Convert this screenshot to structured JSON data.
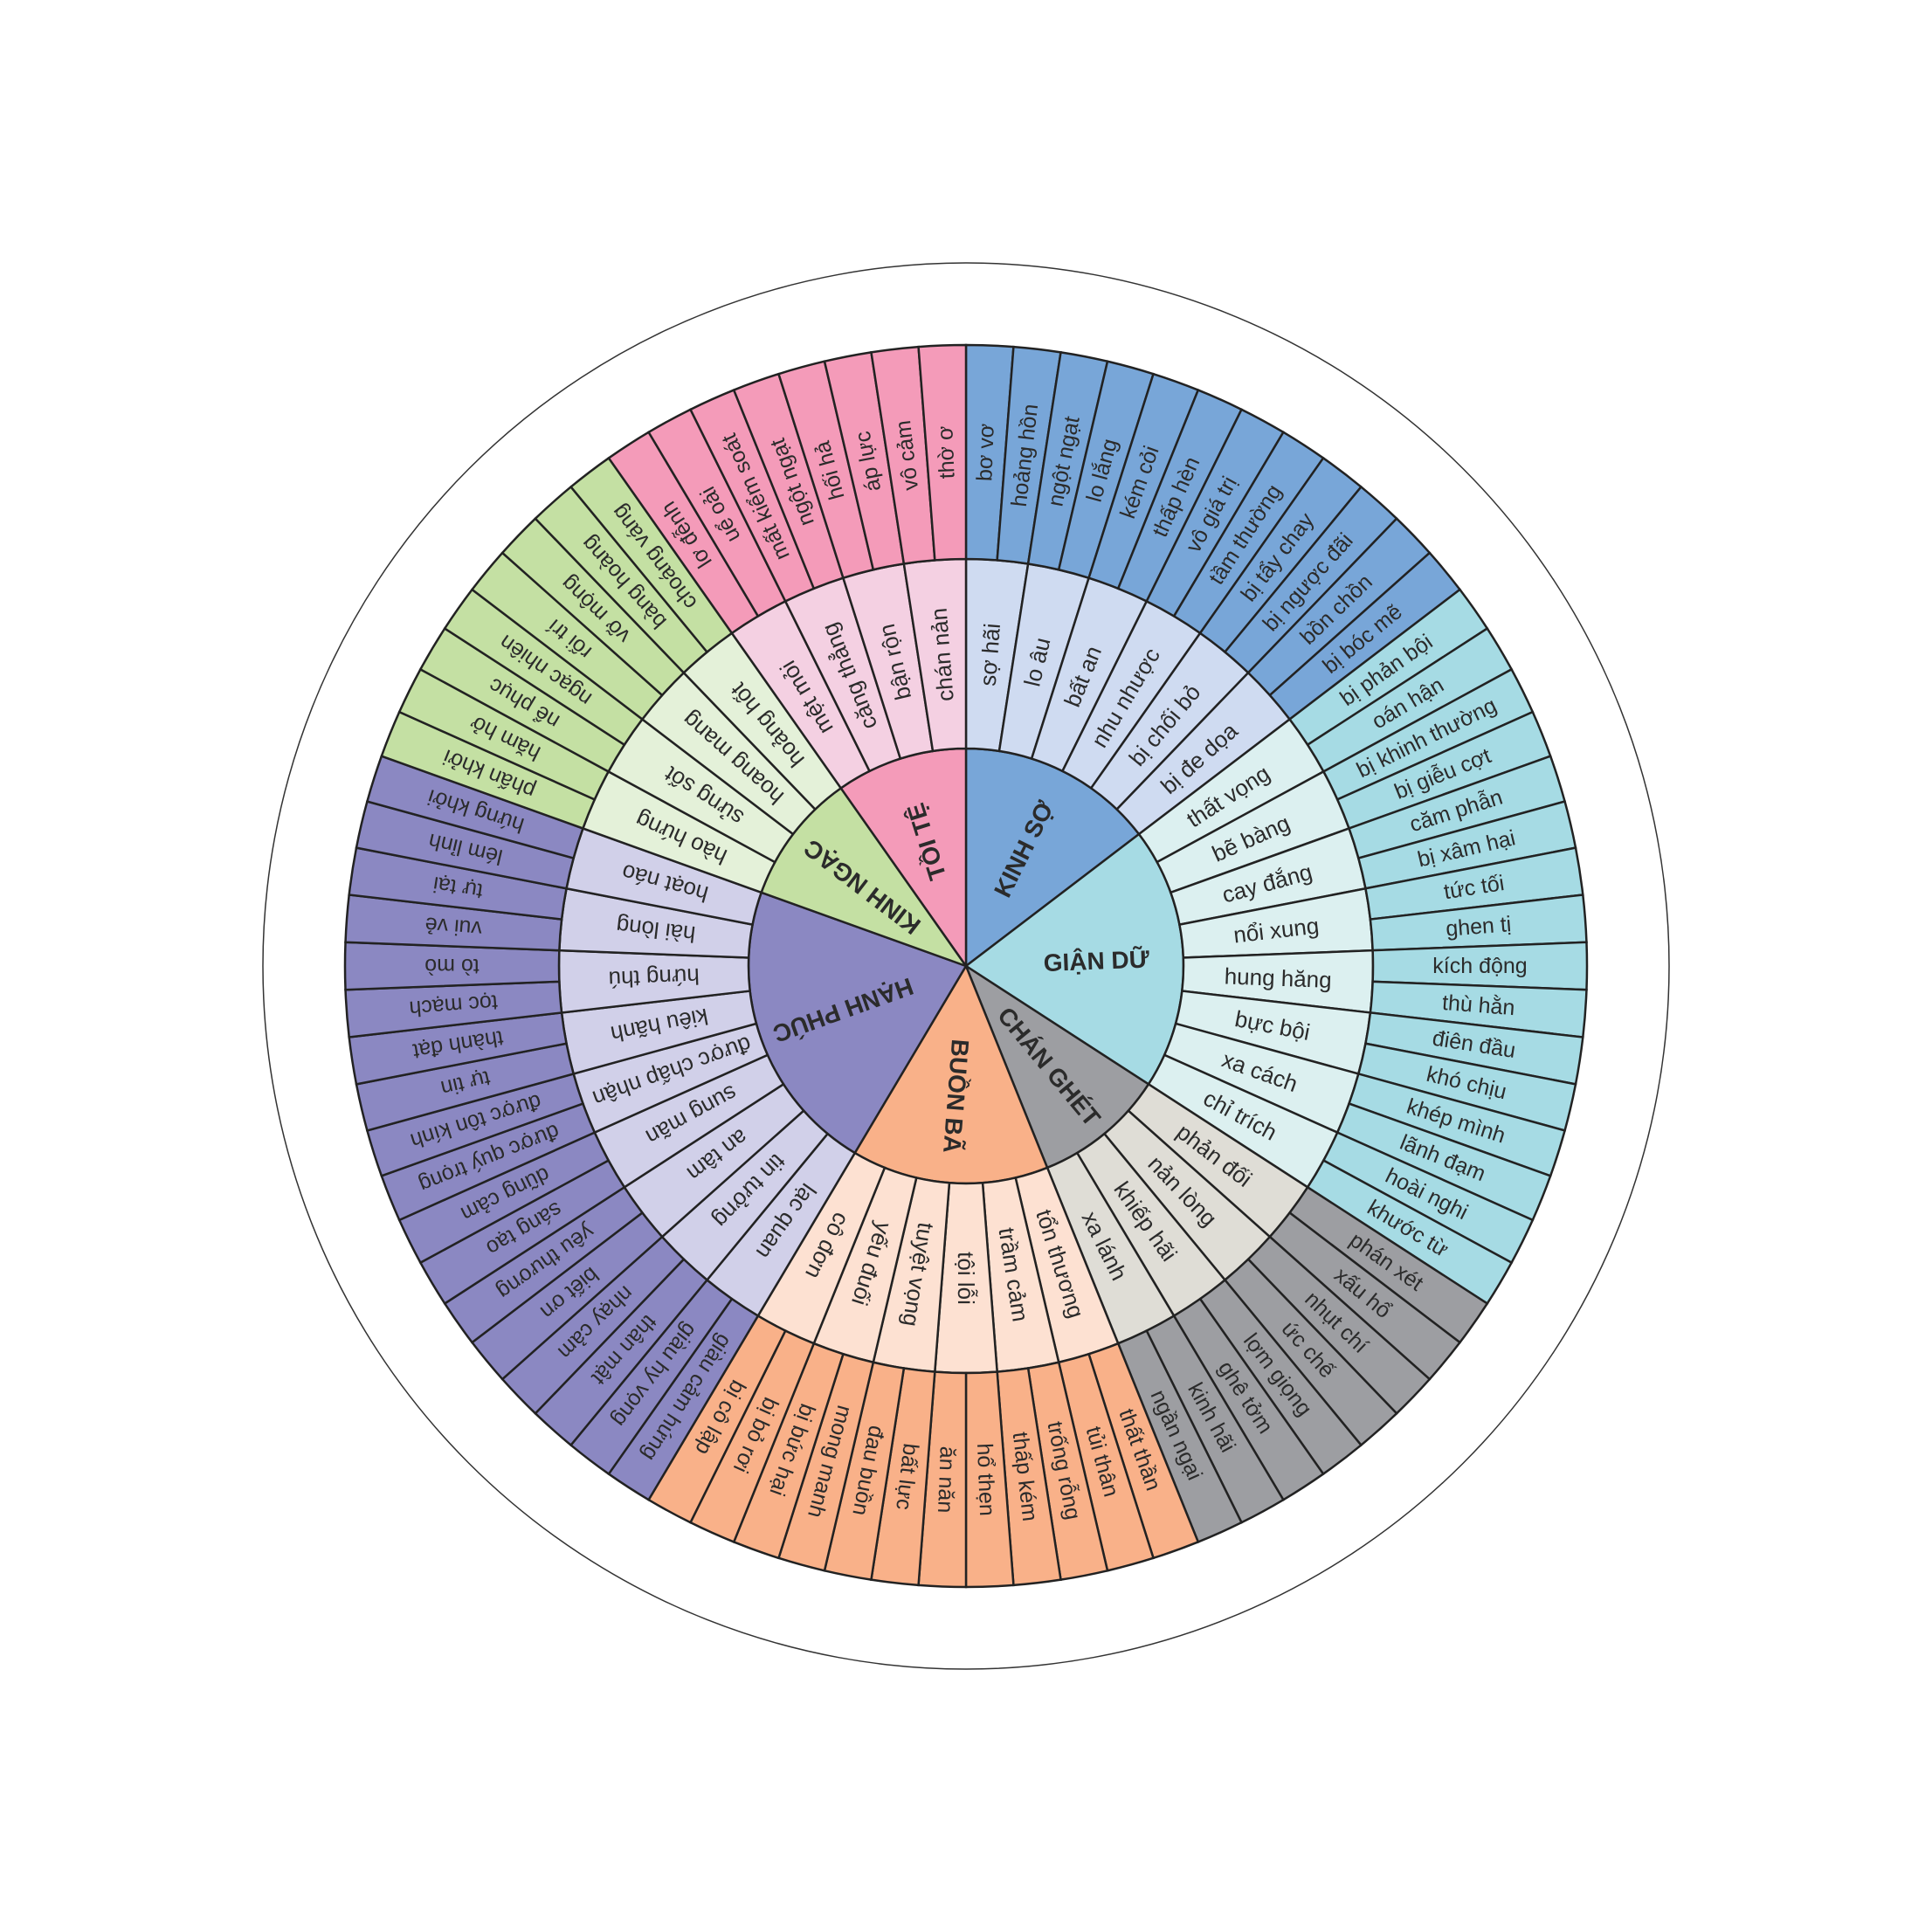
{
  "wheel": {
    "categories": [
      {
        "label": "KINH SỢ",
        "color": "#78a6d8",
        "mid_color": "#cfdbf1",
        "items": [
          {
            "label": "sợ hãi",
            "outer": [
              "bơ vơ",
              "hoảng hồn"
            ]
          },
          {
            "label": "lo âu",
            "outer": [
              "ngột ngạt",
              "lo lắng"
            ]
          },
          {
            "label": "bất an",
            "outer": [
              "kém cỏi",
              "thấp hèn"
            ]
          },
          {
            "label": "nhu nhược",
            "outer": [
              "vô giá trị",
              "tầm thường"
            ]
          },
          {
            "label": "bị chối bỏ",
            "outer": [
              "bị tẩy chay",
              "bị ngược đãi"
            ]
          },
          {
            "label": "bị đe dọa",
            "outer": [
              "bồn chồn",
              "bị bóc mẽ"
            ]
          }
        ]
      },
      {
        "label": "GIẬN DỮ",
        "color": "#a6dbe4",
        "mid_color": "#dcf0f0",
        "items": [
          {
            "label": "thất vọng",
            "outer": [
              "bị phản bội",
              "oán hận"
            ]
          },
          {
            "label": "bẽ bàng",
            "outer": [
              "bị khinh thường",
              "bị giễu cợt"
            ]
          },
          {
            "label": "cay đắng",
            "outer": [
              "căm phẫn",
              "bị xâm hại"
            ]
          },
          {
            "label": "nổi xung",
            "outer": [
              "tức tối",
              "ghen tị"
            ]
          },
          {
            "label": "hung hăng",
            "outer": [
              "kích động",
              "thù hằn"
            ]
          },
          {
            "label": "bực bội",
            "outer": [
              "điên đầu",
              "khó chịu"
            ]
          },
          {
            "label": "xa cách",
            "outer": [
              "khép mình",
              "lãnh đạm"
            ]
          },
          {
            "label": "chỉ trích",
            "outer": [
              "hoài nghi",
              "khước từ"
            ]
          }
        ]
      },
      {
        "label": "CHÁN GHÉT",
        "color": "#9d9ea2",
        "mid_color": "#dfddd6",
        "items": [
          {
            "label": "phản đối",
            "outer": [
              "phán xét",
              "xấu hổ"
            ]
          },
          {
            "label": "nản lòng",
            "outer": [
              "nhụt chí",
              "ức chế"
            ]
          },
          {
            "label": "khiếp hãi",
            "outer": [
              "lợm giọng",
              "ghê tởm"
            ]
          },
          {
            "label": "xa lánh",
            "outer": [
              "kinh hãi",
              "ngần ngại"
            ]
          }
        ]
      },
      {
        "label": "BUỒN BÃ",
        "color": "#f9b189",
        "mid_color": "#fde1d2",
        "items": [
          {
            "label": "tổn thương",
            "outer": [
              "thất thần",
              "tủi thân"
            ]
          },
          {
            "label": "trầm cảm",
            "outer": [
              "trống rỗng",
              "thấp kém"
            ]
          },
          {
            "label": "tội lỗi",
            "outer": [
              "hổ thẹn",
              "ăn năn"
            ]
          },
          {
            "label": "tuyệt vọng",
            "outer": [
              "bất lực",
              "đau buồn"
            ]
          },
          {
            "label": "yếu đuối",
            "outer": [
              "mong manh",
              "bị bức hại"
            ]
          },
          {
            "label": "cô đơn",
            "outer": [
              "bị bỏ rơi",
              "bị cô lập"
            ]
          }
        ]
      },
      {
        "label": "HẠNH PHÚC",
        "color": "#8b88c2",
        "mid_color": "#d1d0e9",
        "items": [
          {
            "label": "lạc quan",
            "outer": [
              "giàu cảm hứng",
              "giàu hy vọng"
            ]
          },
          {
            "label": "tin tưởng",
            "outer": [
              "thân mật",
              "nhạy cảm"
            ]
          },
          {
            "label": "an tâm",
            "outer": [
              "biết ơn",
              "yêu thương"
            ]
          },
          {
            "label": "sung mãn",
            "outer": [
              "sáng tạo",
              "dũng cảm"
            ]
          },
          {
            "label": "được chấp nhận",
            "outer": [
              "được quý trọng",
              "được tôn kính"
            ]
          },
          {
            "label": "kiêu hãnh",
            "outer": [
              "tự tin",
              "thành đạt"
            ]
          },
          {
            "label": "hứng thú",
            "outer": [
              "tọc mạch",
              "tò mò"
            ]
          },
          {
            "label": "hài lòng",
            "outer": [
              "vui vẻ",
              "tự tại"
            ]
          },
          {
            "label": "hoạt náo",
            "outer": [
              "lém lỉnh",
              "hứng khởi"
            ]
          }
        ]
      },
      {
        "label": "KINH NGẠC",
        "color": "#c4e0a3",
        "mid_color": "#e4f1d9",
        "items": [
          {
            "label": "hào hứng",
            "outer": [
              "phấn khởi",
              "hăm hở"
            ]
          },
          {
            "label": "sửng sốt",
            "outer": [
              "nể phục",
              "ngạc nhiên"
            ]
          },
          {
            "label": "hoang mang",
            "outer": [
              "rối trí",
              "vỡ mộng"
            ]
          },
          {
            "label": "hoảng hốt",
            "outer": [
              "bàng hoàng",
              "choáng váng"
            ]
          }
        ]
      },
      {
        "label": "TỒI TỆ",
        "color": "#f49bb9",
        "mid_color": "#f4d0e2",
        "items": [
          {
            "label": "mệt mỏi",
            "outer": [
              "lơ đễnh",
              "uể oải"
            ]
          },
          {
            "label": "căng thẳng",
            "outer": [
              "mất kiểm soát",
              "ngột ngạt"
            ]
          },
          {
            "label": "bận rộn",
            "outer": [
              "hối hả",
              "áp lực"
            ]
          },
          {
            "label": "chán nản",
            "outer": [
              "vô cảm",
              "thờ ơ"
            ]
          }
        ]
      }
    ]
  }
}
